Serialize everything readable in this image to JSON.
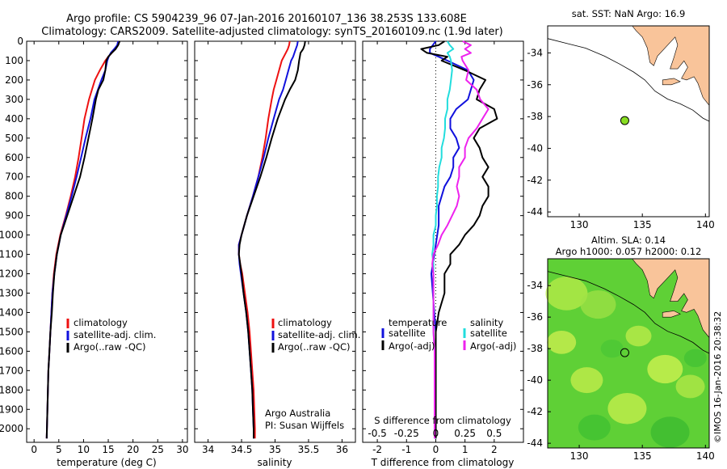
{
  "header": {
    "line1": "Argo profile: CS 5904239_96 07-Jan-2016 20160107_136 38.253S 133.608E",
    "line2": "Climatology: CARS2009. Satellite-adjusted climatology: synTS_20160109.nc (1.9d later)"
  },
  "colors": {
    "climatology": "#ee1111",
    "satellite": "#1111dd",
    "argo": "#000000",
    "sal_satellite": "#22dddd",
    "sal_argo": "#ee22ee",
    "land": "#f9c49a",
    "float": "#88dd22"
  },
  "chart_data": [
    {
      "type": "line",
      "id": "temperature",
      "xlabel": "temperature (deg C)",
      "xlim": [
        -1.5,
        31
      ],
      "xticks": [
        "0",
        "5",
        "10",
        "15",
        "20",
        "25",
        "30"
      ],
      "ylim": [
        0,
        2070
      ],
      "yticks": [
        "0",
        "100",
        "200",
        "300",
        "400",
        "500",
        "600",
        "700",
        "800",
        "900",
        "1000",
        "1100",
        "1200",
        "1300",
        "1400",
        "1500",
        "1600",
        "1700",
        "1800",
        "1900",
        "2000"
      ],
      "legend": [
        "climatology",
        "satellite-adj. clim.",
        "Argo(..raw -QC)"
      ],
      "depth": [
        0,
        20,
        40,
        60,
        80,
        100,
        150,
        200,
        250,
        300,
        400,
        500,
        600,
        700,
        800,
        900,
        1000,
        1100,
        1200,
        1300,
        1400,
        1500,
        1600,
        1700,
        1800,
        1900,
        2000,
        2050
      ],
      "series": [
        {
          "name": "climatology",
          "values": [
            17.0,
            16.9,
            16.4,
            15.7,
            15.0,
            14.4,
            13.3,
            12.3,
            11.7,
            11.1,
            10.2,
            9.6,
            9.0,
            8.3,
            7.4,
            6.4,
            5.3,
            4.5,
            4.0,
            3.7,
            3.5,
            3.3,
            3.1,
            2.9,
            2.8,
            2.7,
            2.6,
            2.55
          ]
        },
        {
          "name": "satellite-adj. clim.",
          "values": [
            17.0,
            16.8,
            16.2,
            15.5,
            15.1,
            14.8,
            14.4,
            13.6,
            12.9,
            12.2,
            11.4,
            10.4,
            9.5,
            8.6,
            7.6,
            6.5,
            5.4,
            4.6,
            4.1,
            3.7,
            3.5,
            3.3,
            3.1,
            2.9,
            2.8,
            2.7,
            2.6,
            2.55
          ]
        },
        {
          "name": "Argo(..raw -QC)",
          "values": [
            17.3,
            17.0,
            16.5,
            15.7,
            15.0,
            14.6,
            14.4,
            14.0,
            13.0,
            12.5,
            11.8,
            11.0,
            10.2,
            9.3,
            8.0,
            6.7,
            5.4,
            4.6,
            4.1,
            3.8,
            3.6,
            3.3,
            3.1,
            2.9,
            2.8,
            2.7,
            2.6,
            2.55
          ]
        }
      ]
    },
    {
      "type": "line",
      "id": "salinity",
      "xlabel": "salinity",
      "xlim": [
        33.8,
        36.2
      ],
      "xticks": [
        "34",
        "34.5",
        "35",
        "35.5",
        "36"
      ],
      "ylim": [
        0,
        2070
      ],
      "legend": [
        "climatology",
        "satellite-adj. clim.",
        "Argo(..raw -QC)"
      ],
      "annotation": [
        "Argo Australia",
        "PI: Susan Wijffels"
      ],
      "depth": [
        0,
        20,
        40,
        60,
        80,
        100,
        150,
        200,
        250,
        300,
        400,
        500,
        600,
        700,
        800,
        900,
        1000,
        1050,
        1100,
        1150,
        1200,
        1300,
        1400,
        1500,
        1600,
        1700,
        1800,
        1900,
        2000,
        2050
      ],
      "series": [
        {
          "name": "climatology",
          "values": [
            35.22,
            35.21,
            35.19,
            35.16,
            35.13,
            35.1,
            35.06,
            35.02,
            34.98,
            34.95,
            34.9,
            34.86,
            34.81,
            34.75,
            34.67,
            34.58,
            34.5,
            34.46,
            34.46,
            34.48,
            34.51,
            34.55,
            34.59,
            34.62,
            34.64,
            34.66,
            34.68,
            34.69,
            34.7,
            34.7
          ]
        },
        {
          "name": "satellite-adj. clim.",
          "values": [
            35.34,
            35.33,
            35.31,
            35.29,
            35.27,
            35.24,
            35.2,
            35.16,
            35.12,
            35.06,
            34.98,
            34.9,
            34.83,
            34.75,
            34.67,
            34.58,
            34.5,
            34.46,
            34.46,
            34.47,
            34.49,
            34.53,
            34.57,
            34.6,
            34.62,
            34.64,
            34.66,
            34.67,
            34.68,
            34.68
          ]
        },
        {
          "name": "Argo(..raw -QC)",
          "values": [
            35.45,
            35.44,
            35.42,
            35.38,
            35.37,
            35.36,
            35.34,
            35.3,
            35.22,
            35.15,
            35.04,
            34.95,
            34.87,
            34.78,
            34.68,
            34.58,
            34.5,
            34.47,
            34.46,
            34.48,
            34.5,
            34.53,
            34.57,
            34.6,
            34.62,
            34.64,
            34.66,
            34.67,
            34.68,
            34.68
          ]
        }
      ]
    },
    {
      "type": "line",
      "id": "difference",
      "xlabel": "T difference from climatology",
      "xlabel_top": "S difference from climatology",
      "xlim": [
        -2.5,
        3
      ],
      "xticks": [
        "-2",
        "-1",
        "0",
        "1",
        "2"
      ],
      "xticks_top": [
        "-0.5",
        "-0.25",
        "0",
        "0.25",
        "0.5"
      ],
      "ylim": [
        0,
        2070
      ],
      "legend": {
        "temperature": [
          "temperature",
          "satellite",
          "Argo(-adj)"
        ],
        "salinity": [
          "salinity",
          "satellite",
          "Argo(-adj)"
        ]
      },
      "depth": [
        0,
        20,
        40,
        60,
        80,
        100,
        150,
        200,
        250,
        300,
        350,
        400,
        450,
        500,
        550,
        600,
        650,
        700,
        750,
        800,
        850,
        900,
        950,
        1000,
        1050,
        1100,
        1150,
        1200,
        1300,
        1400,
        1500,
        1600,
        1700,
        1800,
        1900,
        2000,
        2050
      ],
      "series": [
        {
          "name": "temperature satellite",
          "values": [
            0.0,
            -0.1,
            -0.2,
            -0.2,
            0.1,
            0.4,
            1.1,
            1.3,
            1.2,
            1.1,
            0.7,
            0.5,
            0.5,
            0.7,
            0.8,
            0.6,
            0.6,
            0.5,
            0.3,
            0.2,
            0.1,
            0.1,
            0.1,
            0.05,
            0.0,
            -0.05,
            -0.1,
            -0.15,
            -0.1,
            -0.05,
            0.0,
            0.0,
            0.0,
            0.0,
            0.0,
            0.0,
            0.0
          ]
        },
        {
          "name": "temperature Argo(-adj)",
          "values": [
            0.3,
            0.1,
            -0.5,
            -0.3,
            0.4,
            0.2,
            1.0,
            1.7,
            1.5,
            1.4,
            2.0,
            2.1,
            1.5,
            1.3,
            1.5,
            1.6,
            1.8,
            1.6,
            1.8,
            1.8,
            1.6,
            1.5,
            1.3,
            1.0,
            0.8,
            0.5,
            0.5,
            0.3,
            0.3,
            0.1,
            0.0,
            0.0,
            0.0,
            0.0,
            0.0,
            0.0,
            0.0
          ]
        },
        {
          "name": "salinity satellite",
          "values": [
            0.1,
            0.12,
            0.15,
            0.1,
            0.12,
            0.13,
            0.14,
            0.13,
            0.12,
            0.1,
            0.1,
            0.08,
            0.08,
            0.07,
            0.05,
            0.05,
            0.03,
            0.02,
            0.02,
            0.01,
            0.01,
            0.0,
            0.0,
            -0.02,
            -0.02,
            -0.03,
            -0.02,
            -0.02,
            -0.02,
            -0.02,
            -0.02,
            -0.01,
            -0.01,
            -0.01,
            -0.01,
            -0.01,
            -0.01
          ]
        },
        {
          "name": "salinity Argo(-adj)",
          "values": [
            0.23,
            0.3,
            0.25,
            0.3,
            0.22,
            0.23,
            0.28,
            0.26,
            0.35,
            0.38,
            0.45,
            0.4,
            0.35,
            0.28,
            0.25,
            0.25,
            0.2,
            0.2,
            0.18,
            0.2,
            0.18,
            0.14,
            0.1,
            0.05,
            0.02,
            -0.02,
            -0.03,
            -0.02,
            -0.02,
            -0.02,
            -0.02,
            -0.01,
            -0.01,
            -0.01,
            -0.01,
            -0.01,
            -0.01
          ]
        }
      ]
    },
    {
      "type": "scatter",
      "id": "sst_map",
      "title": "sat. SST: NaN Argo: 16.9",
      "xlim": [
        127.5,
        140.3
      ],
      "ylim": [
        -44.3,
        -32.3
      ],
      "xticks": [
        "130",
        "135",
        "140"
      ],
      "yticks": [
        "-34",
        "-36",
        "-38",
        "-40",
        "-42",
        "-44"
      ],
      "point": {
        "lon": 133.608,
        "lat": -38.253
      }
    },
    {
      "type": "heatmap",
      "id": "sla_map",
      "title": [
        "Altim. SLA: 0.14",
        "Argo h1000: 0.057 h2000: 0.12"
      ],
      "xlim": [
        127.5,
        140.3
      ],
      "ylim": [
        -44.3,
        -32.3
      ],
      "xticks": [
        "130",
        "135",
        "140"
      ],
      "yticks": [
        "-34",
        "-36",
        "-38",
        "-40",
        "-42",
        "-44"
      ],
      "point": {
        "lon": 133.608,
        "lat": -38.253
      }
    }
  ],
  "credit": "©IMOS 16-Jan-2016 20:38:32"
}
